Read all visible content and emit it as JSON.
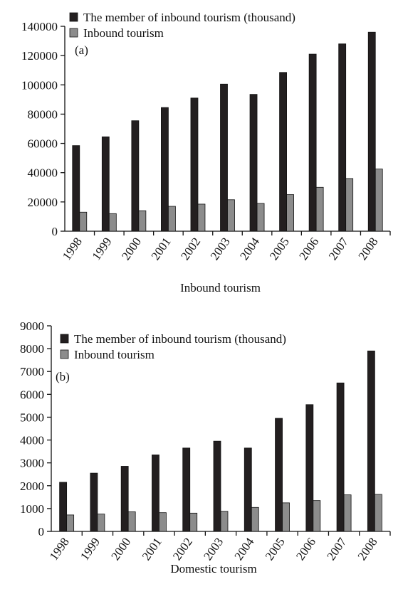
{
  "chart_data": [
    {
      "type": "bar",
      "panel_label": "(a)",
      "categories": [
        "1998",
        "1999",
        "2000",
        "2001",
        "2002",
        "2003",
        "2004",
        "2005",
        "2006",
        "2007",
        "2008"
      ],
      "series": [
        {
          "name": "The member of inbound tourism (thousand)",
          "color": "#231f20",
          "values": [
            58500,
            64500,
            75500,
            84500,
            91000,
            100500,
            93500,
            108500,
            121000,
            128000,
            136000
          ]
        },
        {
          "name": "Inbound tourism",
          "color": "#8c8c8c",
          "values": [
            13000,
            12000,
            14000,
            17000,
            18500,
            21500,
            19000,
            25000,
            30000,
            36000,
            42500
          ]
        }
      ],
      "xlabel": "Inbound tourism",
      "ylim": [
        0,
        140000
      ],
      "yticks": [
        0,
        20000,
        40000,
        60000,
        80000,
        100000,
        120000,
        140000
      ],
      "legend_position": "top-left"
    },
    {
      "type": "bar",
      "panel_label": "(b)",
      "categories": [
        "1998",
        "1999",
        "2000",
        "2001",
        "2002",
        "2003",
        "2004",
        "2005",
        "2006",
        "2007",
        "2008"
      ],
      "series": [
        {
          "name": "The member of inbound tourism (thousand)",
          "color": "#231f20",
          "values": [
            2150,
            2550,
            2850,
            3350,
            3650,
            3950,
            3650,
            4950,
            5550,
            6500,
            7900
          ]
        },
        {
          "name": "Inbound tourism",
          "color": "#8c8c8c",
          "values": [
            720,
            760,
            860,
            820,
            800,
            880,
            1050,
            1250,
            1350,
            1600,
            1620
          ]
        }
      ],
      "xlabel": "Domestic tourism",
      "ylim": [
        0,
        9000
      ],
      "yticks": [
        0,
        1000,
        2000,
        3000,
        4000,
        5000,
        6000,
        7000,
        8000,
        9000
      ],
      "legend_position": "top-left"
    }
  ]
}
